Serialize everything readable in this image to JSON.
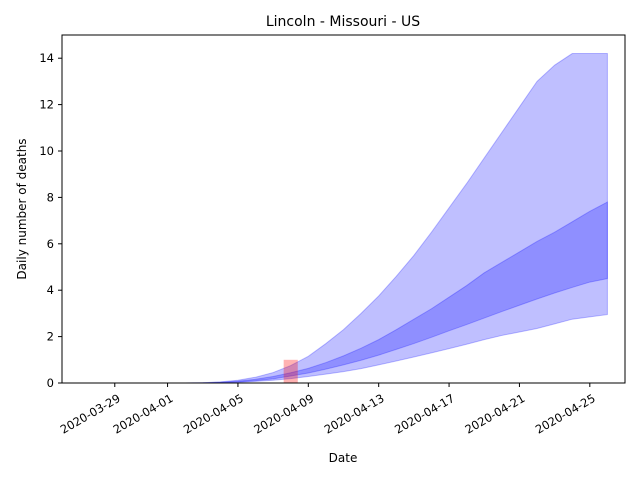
{
  "chart_data": {
    "type": "area",
    "title": "Lincoln - Missouri - US",
    "xlabel": "Date",
    "ylabel": "Daily number of deaths",
    "x_axis_type": "date",
    "xlim": [
      "2020-03-26",
      "2020-04-27"
    ],
    "ylim": [
      0,
      15
    ],
    "xticks": [
      "2020-03-29",
      "2020-04-01",
      "2020-04-05",
      "2020-04-09",
      "2020-04-13",
      "2020-04-17",
      "2020-04-21",
      "2020-04-25"
    ],
    "yticks": [
      0,
      2,
      4,
      6,
      8,
      10,
      12,
      14
    ],
    "x": [
      "2020-04-02",
      "2020-04-03",
      "2020-04-04",
      "2020-04-05",
      "2020-04-06",
      "2020-04-07",
      "2020-04-08",
      "2020-04-09",
      "2020-04-10",
      "2020-04-11",
      "2020-04-12",
      "2020-04-13",
      "2020-04-14",
      "2020-04-15",
      "2020-04-16",
      "2020-04-17",
      "2020-04-18",
      "2020-04-19",
      "2020-04-20",
      "2020-04-21",
      "2020-04-22",
      "2020-04-23",
      "2020-04-24",
      "2020-04-25",
      "2020-04-26"
    ],
    "bands": [
      {
        "lower": [
          0,
          0,
          0.01,
          0.03,
          0.07,
          0.12,
          0.19,
          0.28,
          0.38,
          0.49,
          0.62,
          0.78,
          0.95,
          1.12,
          1.3,
          1.48,
          1.67,
          1.87,
          2.05,
          2.2,
          2.35,
          2.55,
          2.75,
          2.85,
          2.95
        ],
        "upper": [
          0,
          0.01,
          0.05,
          0.12,
          0.25,
          0.45,
          0.75,
          1.15,
          1.7,
          2.3,
          3,
          3.75,
          4.6,
          5.5,
          6.5,
          7.55,
          8.6,
          9.7,
          10.8,
          11.9,
          13,
          13.7,
          14.2,
          14.2,
          14.2
        ]
      },
      {
        "lower": [
          0,
          0,
          0.02,
          0.05,
          0.1,
          0.18,
          0.3,
          0.43,
          0.6,
          0.78,
          0.98,
          1.2,
          1.45,
          1.7,
          1.97,
          2.25,
          2.52,
          2.8,
          3.08,
          3.35,
          3.62,
          3.88,
          4.12,
          4.35,
          4.5
        ],
        "upper": [
          0,
          0.01,
          0.03,
          0.08,
          0.16,
          0.28,
          0.44,
          0.63,
          0.88,
          1.17,
          1.5,
          1.87,
          2.3,
          2.75,
          3.2,
          3.7,
          4.2,
          4.75,
          5.2,
          5.65,
          6.1,
          6.5,
          6.95,
          7.4,
          7.8
        ]
      }
    ],
    "observed": [
      {
        "date": "2020-04-08",
        "value": 1
      }
    ],
    "grid": false,
    "colors": {
      "band": "#0000ff",
      "band_opacity": 0.25,
      "observed": "#ff0000",
      "observed_opacity": 0.3
    }
  }
}
